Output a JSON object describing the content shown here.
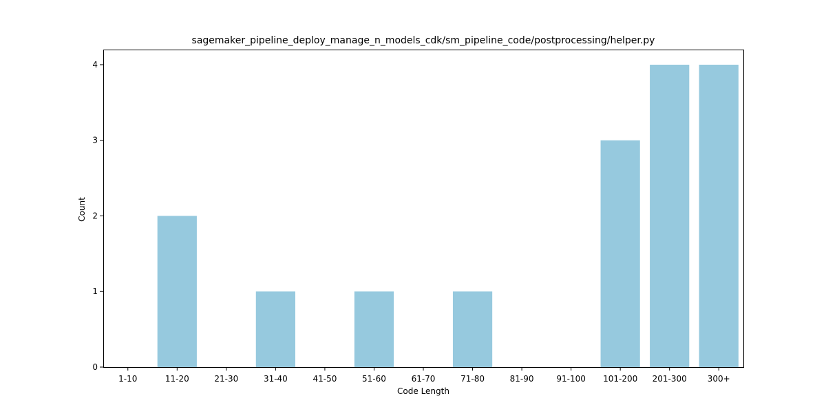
{
  "chart_data": {
    "type": "bar",
    "title": "sagemaker_pipeline_deploy_manage_n_models_cdk/sm_pipeline_code/postprocessing/helper.py",
    "xlabel": "Code Length",
    "ylabel": "Count",
    "categories": [
      "1-10",
      "11-20",
      "21-30",
      "31-40",
      "41-50",
      "51-60",
      "61-70",
      "71-80",
      "81-90",
      "91-100",
      "101-200",
      "201-300",
      "300+"
    ],
    "values": [
      0,
      2,
      0,
      1,
      0,
      1,
      0,
      1,
      0,
      0,
      3,
      4,
      4
    ],
    "ylim": [
      0,
      4.2
    ],
    "yticks": [
      0,
      1,
      2,
      3,
      4
    ],
    "grid": false,
    "bar_color": "#96c9de"
  }
}
